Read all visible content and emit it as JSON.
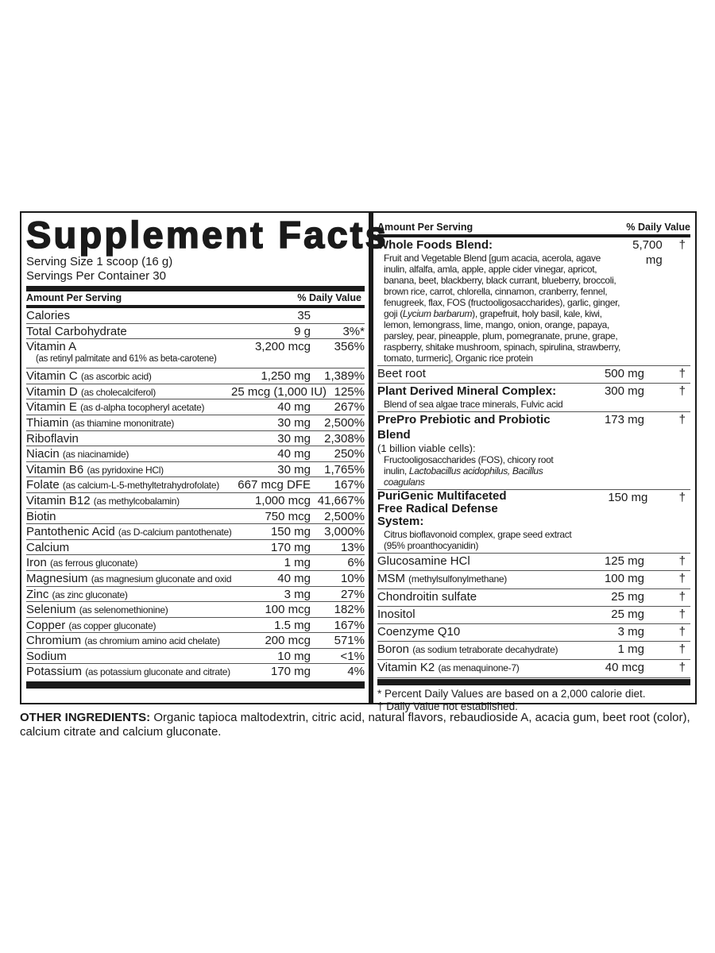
{
  "title": "Supplement Facts",
  "serving_size": "Serving Size 1 scoop (16 g)",
  "servings_per_container": "Servings Per Container 30",
  "header": {
    "amount": "Amount Per Serving",
    "dv": "% Daily Value"
  },
  "left_rows": [
    {
      "name": "Calories",
      "sub": "",
      "amount": "35",
      "dv": ""
    },
    {
      "name": "Total Carbohydrate",
      "sub": "",
      "amount": "9 g",
      "dv": "3%*"
    },
    {
      "name": "Vitamin A",
      "sub2": "(as retinyl palmitate and 61% as beta-carotene)",
      "amount": "3,200 mcg",
      "dv": "356%"
    },
    {
      "name": "Vitamin C",
      "sub": "(as ascorbic acid)",
      "amount": "1,250 mg",
      "dv": "1,389%"
    },
    {
      "name": "Vitamin D",
      "sub": "(as cholecalciferol)",
      "amount": "25 mcg (1,000 IU)",
      "dv": "125%"
    },
    {
      "name": "Vitamin E",
      "sub": "(as d-alpha tocopheryl acetate)",
      "amount": "40 mg",
      "dv": "267%"
    },
    {
      "name": "Thiamin",
      "sub": "(as thiamine mononitrate)",
      "amount": "30 mg",
      "dv": "2,500%"
    },
    {
      "name": "Riboflavin",
      "sub": "",
      "amount": "30 mg",
      "dv": "2,308%"
    },
    {
      "name": "Niacin",
      "sub": "(as niacinamide)",
      "amount": "40 mg",
      "dv": "250%"
    },
    {
      "name": "Vitamin B6",
      "sub": "(as pyridoxine HCl)",
      "amount": "30 mg",
      "dv": "1,765%"
    },
    {
      "name": "Folate",
      "sub": "(as calcium-L-5-methyltetrahydrofolate)",
      "amount": "667 mcg DFE",
      "dv": "167%"
    },
    {
      "name": "Vitamin B12",
      "sub": "(as methylcobalamin)",
      "amount": "1,000 mcg",
      "dv": "41,667%"
    },
    {
      "name": "Biotin",
      "sub": "",
      "amount": "750 mcg",
      "dv": "2,500%"
    },
    {
      "name": "Pantothenic Acid",
      "sub": "(as D-calcium pantothenate)",
      "amount": "150 mg",
      "dv": "3,000%"
    },
    {
      "name": "Calcium",
      "sub": "",
      "amount": "170 mg",
      "dv": "13%"
    },
    {
      "name": "Iron",
      "sub": "(as ferrous gluconate)",
      "amount": "1 mg",
      "dv": "6%"
    },
    {
      "name": "Magnesium",
      "sub": "(as magnesium gluconate and oxide)",
      "amount": "40 mg",
      "dv": "10%"
    },
    {
      "name": "Zinc",
      "sub": "(as zinc gluconate)",
      "amount": "3 mg",
      "dv": "27%"
    },
    {
      "name": "Selenium",
      "sub": "(as selenomethionine)",
      "amount": "100 mcg",
      "dv": "182%"
    },
    {
      "name": "Copper",
      "sub": "(as copper gluconate)",
      "amount": "1.5 mg",
      "dv": "167%"
    },
    {
      "name": "Chromium",
      "sub": "(as chromium amino acid chelate)",
      "amount": "200 mcg",
      "dv": "571%"
    },
    {
      "name": "Sodium",
      "sub": "",
      "amount": "10 mg",
      "dv": "<1%"
    },
    {
      "name": "Potassium",
      "sub": "(as potassium gluconate and citrate)",
      "amount": "170 mg",
      "dv": "4%"
    }
  ],
  "right_rows": [
    {
      "name": "Whole Foods Blend:",
      "bold": true,
      "amount": "5,700 mg",
      "dv": "†",
      "desc": [
        {
          "text": "Fruit and Vegetable Blend [gum acacia, acerola, agave inulin, alfalfa, amla, apple, apple cider vinegar, apricot, banana, beet, blackberry, black currant, blueberry, broccoli, brown rice, carrot, chlorella, cinnamon, cranberry, fennel, fenugreek, flax, FOS (fructooligosaccharides), garlic, ginger, goji (",
          "italic": false
        },
        {
          "text": "Lycium barbarum",
          "italic": true
        },
        {
          "text": "), grapefruit, holy basil, kale, kiwi, lemon, lemongrass, lime, mango, onion, orange, papaya, parsley, pear, pineapple, plum, pomegranate, prune, grape, raspberry, shitake mushroom, spinach, spirulina, strawberry, tomato, turmeric], Organic rice protein",
          "italic": false
        }
      ]
    },
    {
      "name": "Beet root",
      "bold": false,
      "amount": "500 mg",
      "dv": "†"
    },
    {
      "name": "Plant Derived Mineral Complex:",
      "bold": true,
      "amount": "300 mg",
      "dv": "†",
      "desc": [
        {
          "text": "Blend of sea algae trace minerals, Fulvic acid",
          "italic": false
        }
      ]
    },
    {
      "name": "PrePro Prebiotic and Probiotic Blend",
      "bold": true,
      "amount": "173 mg",
      "dv": "†",
      "pre": "(1 billion viable cells):",
      "desc": [
        {
          "text": "Fructooligosaccharides (FOS), chicory root inulin, ",
          "italic": false
        },
        {
          "text": "Lactobacillus acidophilus, Bacillus coagulans",
          "italic": true
        }
      ]
    },
    {
      "name": "PuriGenic Multifaceted Free Radical Defense System:",
      "bold": true,
      "amount": "150 mg",
      "dv": "†",
      "desc": [
        {
          "text": "Citrus bioflavonoid complex, grape seed extract (95% proanthocyanidin)",
          "italic": false
        }
      ]
    },
    {
      "name": "Glucosamine HCl",
      "bold": false,
      "amount": "125 mg",
      "dv": "†"
    },
    {
      "name": "MSM",
      "sub": "(methylsulfonylmethane)",
      "bold": false,
      "amount": "100 mg",
      "dv": "†"
    },
    {
      "name": "Chondroitin sulfate",
      "bold": false,
      "amount": "25 mg",
      "dv": "†"
    },
    {
      "name": "Inositol",
      "bold": false,
      "amount": "25 mg",
      "dv": "†"
    },
    {
      "name": "Coenzyme Q10",
      "bold": false,
      "amount": "3 mg",
      "dv": "†"
    },
    {
      "name": "Boron",
      "sub": "(as sodium tetraborate decahydrate)",
      "bold": false,
      "amount": "1 mg",
      "dv": "†"
    },
    {
      "name": "Vitamin K2",
      "sub": "(as menaquinone-7)",
      "bold": false,
      "amount": "40 mcg",
      "dv": "†"
    }
  ],
  "footnotes": [
    "* Percent Daily Values are based on a 2,000 calorie diet.",
    "† Daily Value not established."
  ],
  "other_ingredients": {
    "label": "OTHER INGREDIENTS:",
    "text": " Organic tapioca maltodextrin, citric acid, natural flavors, rebaudioside A, acacia gum, beet root (color), calcium citrate and calcium gluconate."
  }
}
